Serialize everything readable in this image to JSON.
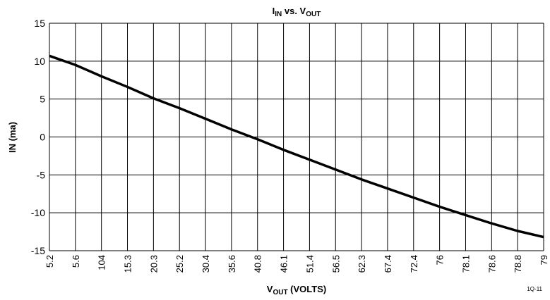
{
  "chart_data": {
    "type": "line",
    "title": [
      "I",
      "IN",
      " vs. V",
      "OUT"
    ],
    "x_label": [
      "V",
      "OUT",
      " (VOLTS)"
    ],
    "y_label": "IN (ma)",
    "footnote": "1Q-11",
    "categories": [
      "5.2",
      "5.6",
      "104",
      "15.3",
      "20.3",
      "25.2",
      "30.4",
      "35.6",
      "40.8",
      "46.1",
      "51.4",
      "56.5",
      "62.3",
      "67.4",
      "72.4",
      "76",
      "78.1",
      "78.6",
      "78.8",
      "79"
    ],
    "values": [
      10.7,
      9.5,
      8.0,
      6.6,
      5.1,
      3.8,
      2.4,
      1.0,
      -0.3,
      -1.7,
      -3.0,
      -4.3,
      -5.6,
      -6.8,
      -8.0,
      -9.2,
      -10.3,
      -11.4,
      -12.4,
      -13.2
    ],
    "color": "#000000",
    "ylim": [
      -15,
      15
    ],
    "yticks": [
      -15,
      -10,
      -5,
      0,
      5,
      10,
      15
    ],
    "grid": true
  }
}
